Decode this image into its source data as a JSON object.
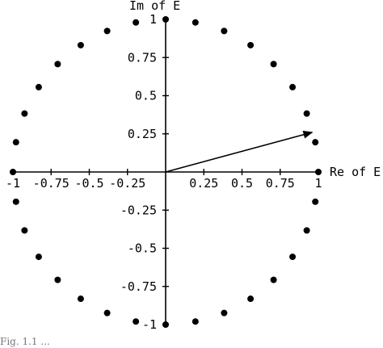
{
  "chart_data": {
    "type": "scatter",
    "xlabel": "Re of E",
    "ylabel": "Im of E",
    "xlim": [
      -1,
      1
    ],
    "ylim": [
      -1,
      1
    ],
    "x_ticks": [
      -1,
      -0.75,
      -0.5,
      -0.25,
      0.25,
      0.5,
      0.75,
      1
    ],
    "x_tick_labels": [
      "-1",
      "-0.75",
      "-0.5",
      "-0.25",
      "0.25",
      "0.5",
      "0.75",
      "1"
    ],
    "y_ticks": [
      1,
      0.75,
      0.5,
      0.25,
      -0.25,
      -0.5,
      -0.75,
      -1
    ],
    "y_tick_labels": [
      "1",
      "0.75",
      "0.5",
      "0.25",
      "-0.25",
      "-0.5",
      "-0.75",
      "-1"
    ],
    "grid": false,
    "points": [
      {
        "x": 1.0,
        "y": 0.0
      },
      {
        "x": 0.98,
        "y": 0.195
      },
      {
        "x": 0.924,
        "y": 0.383
      },
      {
        "x": 0.831,
        "y": 0.556
      },
      {
        "x": 0.707,
        "y": 0.707
      },
      {
        "x": 0.556,
        "y": 0.831
      },
      {
        "x": 0.383,
        "y": 0.924
      },
      {
        "x": 0.195,
        "y": 0.98
      },
      {
        "x": 0.0,
        "y": 1.0
      },
      {
        "x": -0.195,
        "y": 0.98
      },
      {
        "x": -0.383,
        "y": 0.924
      },
      {
        "x": -0.556,
        "y": 0.831
      },
      {
        "x": -0.707,
        "y": 0.707
      },
      {
        "x": -0.831,
        "y": 0.556
      },
      {
        "x": -0.924,
        "y": 0.383
      },
      {
        "x": -0.98,
        "y": 0.195
      },
      {
        "x": -1.0,
        "y": 0.0
      },
      {
        "x": -0.98,
        "y": -0.195
      },
      {
        "x": -0.924,
        "y": -0.383
      },
      {
        "x": -0.831,
        "y": -0.556
      },
      {
        "x": -0.707,
        "y": -0.707
      },
      {
        "x": -0.556,
        "y": -0.831
      },
      {
        "x": -0.383,
        "y": -0.924
      },
      {
        "x": -0.195,
        "y": -0.98
      },
      {
        "x": 0.0,
        "y": -1.0
      },
      {
        "x": 0.195,
        "y": -0.98
      },
      {
        "x": 0.383,
        "y": -0.924
      },
      {
        "x": 0.556,
        "y": -0.831
      },
      {
        "x": 0.707,
        "y": -0.707
      },
      {
        "x": 0.831,
        "y": -0.556
      },
      {
        "x": 0.924,
        "y": -0.383
      },
      {
        "x": 0.98,
        "y": -0.195
      }
    ],
    "vector": {
      "from": [
        0,
        0
      ],
      "to": [
        0.96,
        0.26
      ]
    }
  },
  "caption": "Fig. 1.1 ..."
}
